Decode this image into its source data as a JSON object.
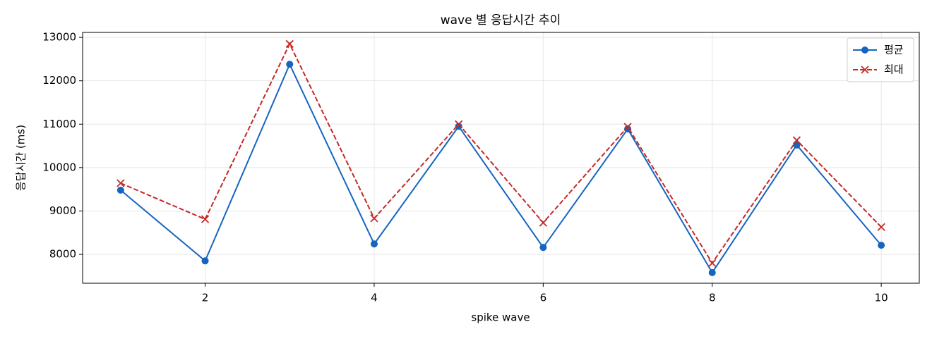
{
  "chart_data": {
    "type": "line",
    "title": "wave 별 응답시간 추이",
    "x_label": "spike wave",
    "y_label": "응답시간 (ms)",
    "x": [
      1,
      2,
      3,
      4,
      5,
      6,
      7,
      8,
      9,
      10
    ],
    "series": [
      {
        "name": "평균",
        "color": "#1565c0",
        "marker": "circle",
        "dash": "solid",
        "values": [
          9480,
          7850,
          12380,
          8240,
          10950,
          8160,
          10890,
          7580,
          10520,
          8210
        ]
      },
      {
        "name": "최대",
        "color": "#c62828",
        "marker": "x",
        "dash": "dashed",
        "values": [
          9640,
          8810,
          12850,
          8830,
          11000,
          8730,
          10940,
          7800,
          10630,
          8630
        ]
      }
    ],
    "xlim": [
      0.55,
      10.45
    ],
    "xticks": [
      2,
      4,
      6,
      8,
      10
    ],
    "ylim": [
      7335,
      13115
    ],
    "yticks": [
      8000,
      9000,
      10000,
      11000,
      12000,
      13000
    ],
    "grid": true,
    "legend": "upper-right"
  }
}
